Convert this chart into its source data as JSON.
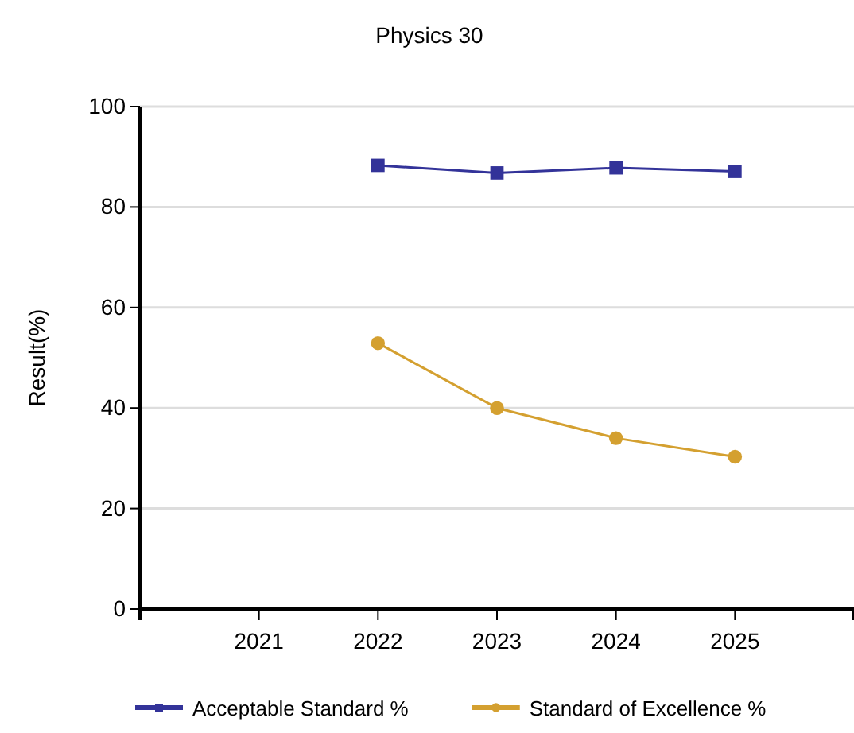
{
  "chart_data": {
    "type": "line",
    "title": "Physics 30",
    "ylabel": "Result(%)",
    "categories": [
      "2021",
      "2022",
      "2023",
      "2024",
      "2025"
    ],
    "series": [
      {
        "name": "Acceptable Standard %",
        "color": "#333399",
        "marker": "square",
        "values": [
          null,
          88.3,
          86.8,
          87.8,
          87.1
        ]
      },
      {
        "name": "Standard of Excellence %",
        "color": "#d4a030",
        "marker": "circle",
        "values": [
          null,
          52.9,
          40.0,
          34.0,
          30.3
        ]
      }
    ],
    "ylim": [
      0,
      100
    ],
    "yticks": [
      0,
      20,
      40,
      60,
      80,
      100
    ],
    "grid": "y",
    "legend": "bottom"
  }
}
